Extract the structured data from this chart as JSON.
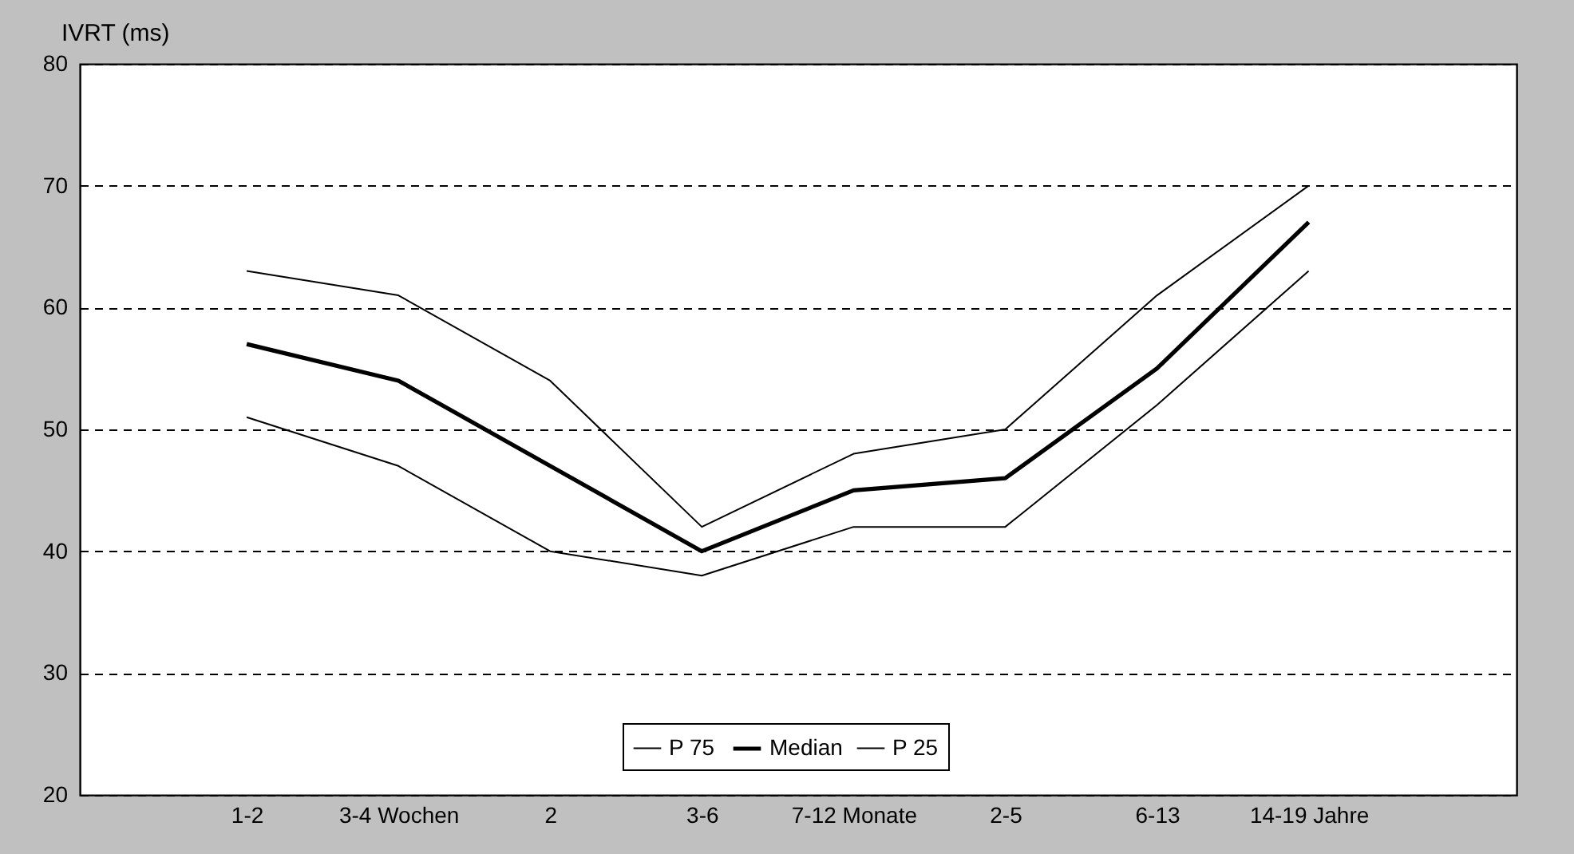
{
  "chart_data": {
    "type": "line",
    "ylabel": "IVRT (ms)",
    "categories": [
      "1-2",
      "3-4 Wochen",
      "2",
      "3-6",
      "7-12 Monate",
      "2-5",
      "6-13",
      "14-19 Jahre"
    ],
    "series": [
      {
        "name": "P 75",
        "color": "#000000",
        "values": [
          63,
          61,
          54,
          42,
          48,
          50,
          61,
          70
        ]
      },
      {
        "name": "Median",
        "color": "#000000",
        "values": [
          57,
          54,
          47,
          40,
          45,
          46,
          55,
          67
        ]
      },
      {
        "name": "P 25",
        "color": "#000000",
        "values": [
          51,
          47,
          40,
          38,
          42,
          42,
          52,
          63
        ]
      }
    ],
    "ylim": [
      20,
      80
    ],
    "yticks": [
      20,
      30,
      40,
      50,
      60,
      70,
      80
    ],
    "grid": "y",
    "legend": "bottom",
    "marker": "none",
    "line_style": "solid"
  }
}
